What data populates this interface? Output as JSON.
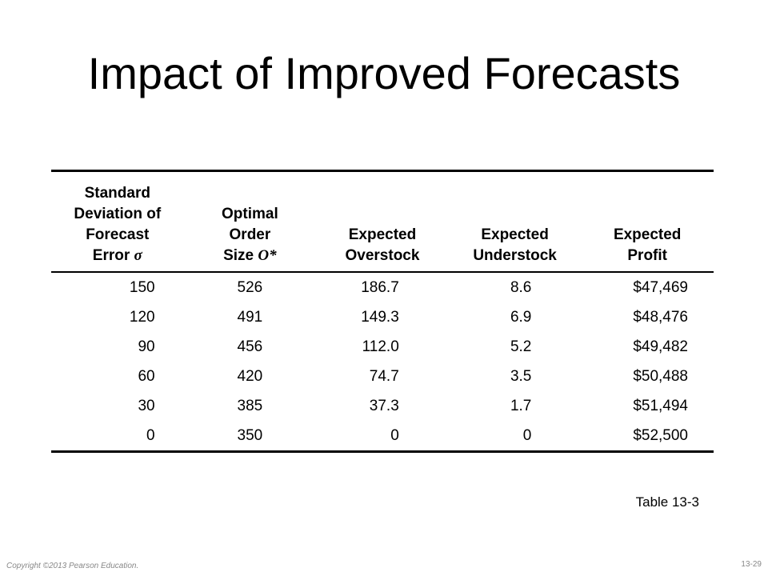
{
  "slide": {
    "title": "Impact of Improved Forecasts",
    "caption": "Table 13-3",
    "copyright": "Copyright ©2013 Pearson Education.",
    "page_number": "13-29"
  },
  "table": {
    "headers": [
      {
        "lines": [
          "Standard",
          "Deviation of",
          "Forecast",
          "Error"
        ],
        "symbol": "σ"
      },
      {
        "lines": [
          "Optimal",
          "Order",
          "Size"
        ],
        "symbol": "O*"
      },
      {
        "lines": [
          "Expected",
          "Overstock"
        ],
        "symbol": ""
      },
      {
        "lines": [
          "Expected",
          "Understock"
        ],
        "symbol": ""
      },
      {
        "lines": [
          "Expected",
          "Profit"
        ],
        "symbol": ""
      }
    ],
    "rows": [
      [
        "150",
        "526",
        "186.7",
        "8.6",
        "$47,469"
      ],
      [
        "120",
        "491",
        "149.3",
        "6.9",
        "$48,476"
      ],
      [
        "90",
        "456",
        "112.0",
        "5.2",
        "$49,482"
      ],
      [
        "60",
        "420",
        "74.7",
        "3.5",
        "$50,488"
      ],
      [
        "30",
        "385",
        "37.3",
        "1.7",
        "$51,494"
      ],
      [
        "0",
        "350",
        "0",
        "0",
        "$52,500"
      ]
    ]
  }
}
